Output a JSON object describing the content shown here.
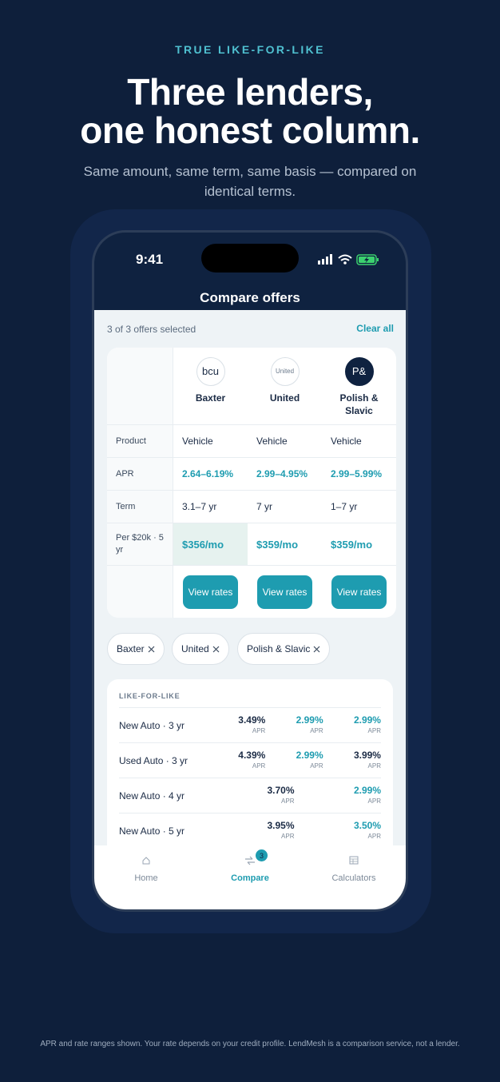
{
  "header": {
    "eyebrow": "TRUE LIKE-FOR-LIKE",
    "title": [
      "Three lenders,",
      "one honest column."
    ],
    "subtitle": "Same amount, same term, same basis — compared on identical terms."
  },
  "status_bar": {
    "time": "9:41"
  },
  "nav": {
    "title": "Compare offers"
  },
  "selection": {
    "summary": "3 of 3 offers selected",
    "clear": "Clear all"
  },
  "compare_table": {
    "lenders": [
      {
        "logo": "bcu",
        "name": "Baxter"
      },
      {
        "logo": "United",
        "name": "United"
      },
      {
        "logo": "P&",
        "name": "Polish & Slavic"
      }
    ],
    "rows": [
      {
        "label": "Product",
        "cells": [
          "Vehicle",
          "Vehicle",
          "Vehicle"
        ]
      },
      {
        "label": "APR",
        "cells": [
          "2.64–6.19%",
          "2.99–4.95%",
          "2.99–5.99%"
        ]
      },
      {
        "label": "Term",
        "cells": [
          "3.1–7 yr",
          "7 yr",
          "1–7 yr"
        ]
      },
      {
        "label": "Per $20k · 5 yr",
        "cells": [
          "$356/mo",
          "$359/mo",
          "$359/mo"
        ]
      }
    ],
    "button": "View rates"
  },
  "chips": [
    "Baxter",
    "United",
    "Polish & Slavic"
  ],
  "like_for_like": {
    "heading": "LIKE-FOR-LIKE",
    "unit": "APR",
    "rows": [
      {
        "label": "New Auto · 3 yr",
        "rates": [
          {
            "value": "3.49%",
            "best": false
          },
          {
            "value": "2.99%",
            "best": true
          },
          {
            "value": "2.99%",
            "best": true
          }
        ]
      },
      {
        "label": "Used Auto · 3 yr",
        "rates": [
          {
            "value": "4.39%",
            "best": false
          },
          {
            "value": "2.99%",
            "best": true
          },
          {
            "value": "3.99%",
            "best": false
          }
        ]
      },
      {
        "label": "New Auto · 4 yr",
        "rates": [
          {
            "value": "3.70%",
            "best": false
          },
          {
            "value": "2.99%",
            "best": true
          }
        ]
      },
      {
        "label": "New Auto · 5 yr",
        "rates": [
          {
            "value": "3.95%",
            "best": false
          },
          {
            "value": "3.50%",
            "best": true
          }
        ]
      }
    ]
  },
  "tab_bar": {
    "tabs": [
      {
        "label": "Home",
        "active": false
      },
      {
        "label": "Compare",
        "badge": "3",
        "active": true
      },
      {
        "label": "Calculators",
        "active": false
      }
    ]
  },
  "footer": "APR and rate ranges shown. Your rate depends on your credit profile. LendMesh is a comparison service, not a lender."
}
